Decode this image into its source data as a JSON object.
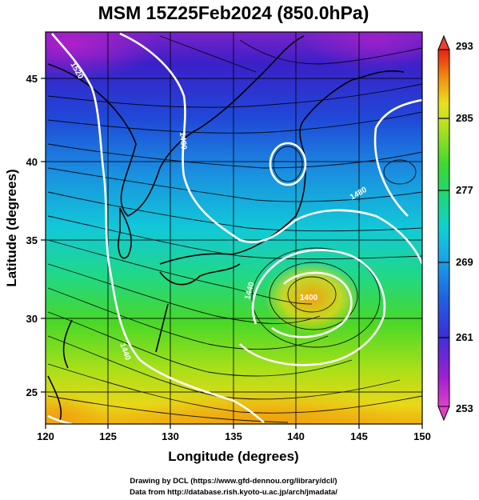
{
  "title": "MSM 15Z25Feb2024 (850.0hPa)",
  "x_axis": {
    "label": "Longitude (degrees)",
    "ticks": [
      "120",
      "125",
      "130",
      "135",
      "140",
      "145",
      "150"
    ],
    "range": [
      120,
      150
    ]
  },
  "y_axis": {
    "label": "Latitude  (degrees)",
    "ticks": [
      "25",
      "30",
      "35",
      "40",
      "45"
    ],
    "range": [
      22.5,
      47.5
    ]
  },
  "colorbar": {
    "min_label": "253",
    "max_label": "293",
    "labels": [
      "261",
      "269",
      "277",
      "285"
    ],
    "colors": [
      "#e040c8",
      "#a020d0",
      "#5030d8",
      "#2050e0",
      "#1890e8",
      "#10c8e0",
      "#20d898",
      "#30d840",
      "#90e020",
      "#e0e020",
      "#f0b010",
      "#f07010",
      "#e82010"
    ]
  },
  "contour_labels": [
    "1520",
    "1480",
    "1440",
    "1400",
    "1440",
    "1480"
  ],
  "credits": {
    "line1": "Drawing by DCL (https://www.gfd-dennou.org/library/dcl/)",
    "line2": "Data from http://database.rish.kyoto-u.ac.jp/arch/jmadata/"
  },
  "colors": {
    "cold": "#3a20c8",
    "warm": "#f0a010",
    "contour": "#ffffff",
    "streamline": "#000000"
  }
}
